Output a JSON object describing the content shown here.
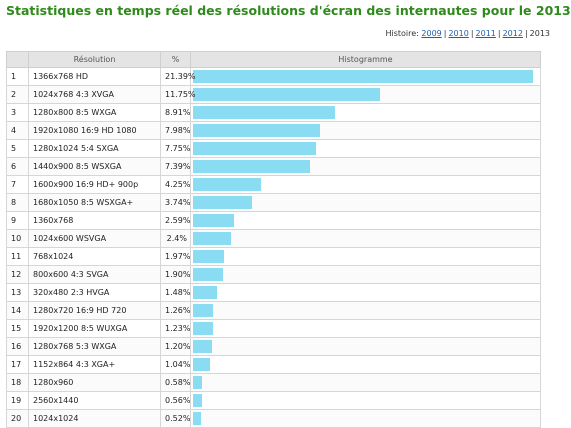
{
  "title": "Statistiques en temps réel des résolutions d'écran des internautes pour le 2013",
  "history": {
    "label": "Histoire:",
    "links": [
      "2009",
      "2010",
      "2011",
      "2012"
    ],
    "current": "2013"
  },
  "table": {
    "headers": {
      "index": "",
      "resolution": "Résolution",
      "percent": "%",
      "histogram": "Histogramme"
    },
    "rows": [
      {
        "n": "1",
        "resolution": "1366x768 HD",
        "percent": "21.39%",
        "value": 21.39
      },
      {
        "n": "2",
        "resolution": "1024x768 4:3 XVGA",
        "percent": "11.75%",
        "value": 11.75
      },
      {
        "n": "3",
        "resolution": "1280x800 8:5 WXGA",
        "percent": "8.91%",
        "value": 8.91
      },
      {
        "n": "4",
        "resolution": "1920x1080 16:9 HD 1080",
        "percent": "7.98%",
        "value": 7.98
      },
      {
        "n": "5",
        "resolution": "1280x1024 5:4 SXGA",
        "percent": "7.75%",
        "value": 7.75
      },
      {
        "n": "6",
        "resolution": "1440x900 8:5 WSXGA",
        "percent": "7.39%",
        "value": 7.39
      },
      {
        "n": "7",
        "resolution": "1600x900 16:9 HD+ 900p",
        "percent": "4.25%",
        "value": 4.25
      },
      {
        "n": "8",
        "resolution": "1680x1050 8:5 WSXGA+",
        "percent": "3.74%",
        "value": 3.74
      },
      {
        "n": "9",
        "resolution": "1360x768",
        "percent": "2.59%",
        "value": 2.59
      },
      {
        "n": "10",
        "resolution": "1024x600 WSVGA",
        "percent": "2.4%",
        "value": 2.4
      },
      {
        "n": "11",
        "resolution": "768x1024",
        "percent": "1.97%",
        "value": 1.97
      },
      {
        "n": "12",
        "resolution": "800x600 4:3 SVGA",
        "percent": "1.90%",
        "value": 1.9
      },
      {
        "n": "13",
        "resolution": "320x480 2:3 HVGA",
        "percent": "1.48%",
        "value": 1.48
      },
      {
        "n": "14",
        "resolution": "1280x720 16:9 HD 720",
        "percent": "1.26%",
        "value": 1.26
      },
      {
        "n": "15",
        "resolution": "1920x1200 8:5 WUXGA",
        "percent": "1.23%",
        "value": 1.23
      },
      {
        "n": "16",
        "resolution": "1280x768 5:3 WXGA",
        "percent": "1.20%",
        "value": 1.2
      },
      {
        "n": "17",
        "resolution": "1152x864 4:3 XGA+",
        "percent": "1.04%",
        "value": 1.04
      },
      {
        "n": "18",
        "resolution": "1280x960",
        "percent": "0.58%",
        "value": 0.58
      },
      {
        "n": "19",
        "resolution": "2560x1440",
        "percent": "0.56%",
        "value": 0.56
      },
      {
        "n": "20",
        "resolution": "1024x1024",
        "percent": "0.52%",
        "value": 0.52
      }
    ]
  },
  "colors": {
    "title": "#2f8a1c",
    "bar": "#8adcf3",
    "link": "#1f5fa8"
  }
}
